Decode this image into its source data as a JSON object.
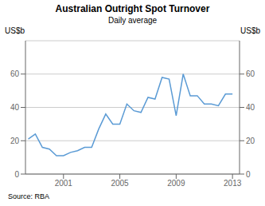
{
  "chart_data": {
    "type": "line",
    "title": "Australian Outright Spot Turnover",
    "subtitle": "Daily average",
    "ylabel": "US$b",
    "y2label": "US$b",
    "source": "Source: RBA",
    "x": [
      1998.5,
      1999.0,
      1999.5,
      2000.0,
      2000.5,
      2001.0,
      2001.5,
      2002.0,
      2002.5,
      2003.0,
      2003.5,
      2004.0,
      2004.5,
      2005.0,
      2005.5,
      2006.0,
      2006.5,
      2007.0,
      2007.5,
      2008.0,
      2008.5,
      2009.0,
      2009.5,
      2010.0,
      2010.5,
      2011.0,
      2011.5,
      2012.0,
      2012.5,
      2013.0
    ],
    "values": [
      21,
      24,
      16,
      15,
      11,
      11,
      13,
      14,
      16,
      16,
      27,
      36,
      30,
      30,
      42,
      38,
      37,
      46,
      45,
      58,
      57,
      35,
      60,
      47,
      47,
      42,
      42,
      41,
      48,
      48
    ],
    "color": "#5B9BD5",
    "xlim": [
      1998.3,
      2013.5
    ],
    "xticks": [
      2001,
      2005,
      2009,
      2013
    ],
    "ylim": [
      0,
      80
    ],
    "yticks": [
      0,
      20,
      40,
      60
    ],
    "y2lim": [
      0,
      80
    ],
    "y2ticks": [
      0,
      20,
      40,
      60
    ],
    "grid": true
  }
}
